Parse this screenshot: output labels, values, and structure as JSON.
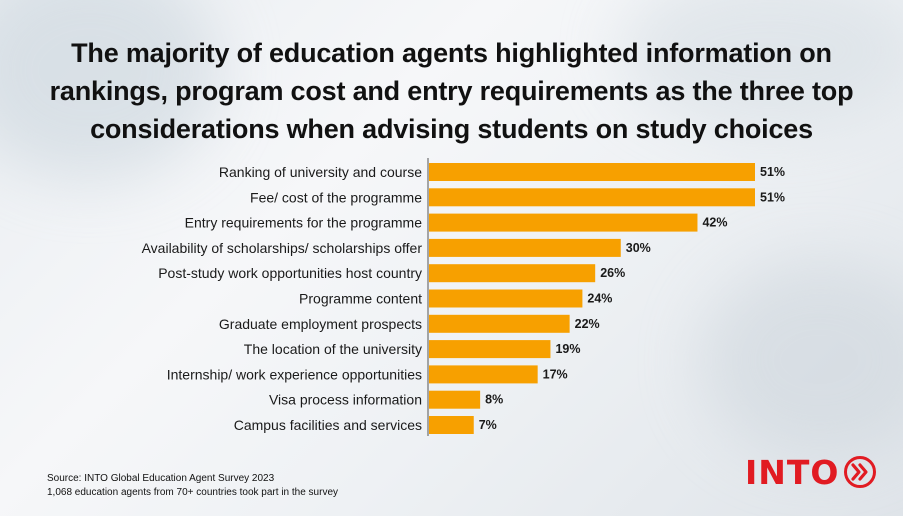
{
  "title": "The majority of education agents highlighted information on rankings, program cost and entry requirements as the three top considerations when advising students on study choices",
  "source_line1": "Source: INTO Global Education Agent Survey 2023",
  "source_line2": "1,068 education agents from 70+ countries took part in the survey",
  "logo_text": "INTO",
  "colors": {
    "bar": "#f7a000",
    "logo": "#e11b22"
  },
  "chart_data": {
    "type": "bar",
    "orientation": "horizontal",
    "categories": [
      "Ranking of university and course",
      "Fee/ cost of the programme",
      "Entry requirements for the programme",
      "Availability of scholarships/ scholarships offer",
      "Post-study work opportunities host country",
      "Programme content",
      "Graduate employment prospects",
      "The location of the university",
      "Internship/ work experience opportunities",
      "Visa process information",
      "Campus facilities and services"
    ],
    "values": [
      51,
      51,
      42,
      30,
      26,
      24,
      22,
      19,
      17,
      8,
      7
    ],
    "value_labels": [
      "51%",
      "51%",
      "42%",
      "30%",
      "26%",
      "24%",
      "22%",
      "19%",
      "17%",
      "8%",
      "7%"
    ],
    "xlim": [
      0,
      51
    ],
    "grid": false,
    "legend": "none"
  }
}
